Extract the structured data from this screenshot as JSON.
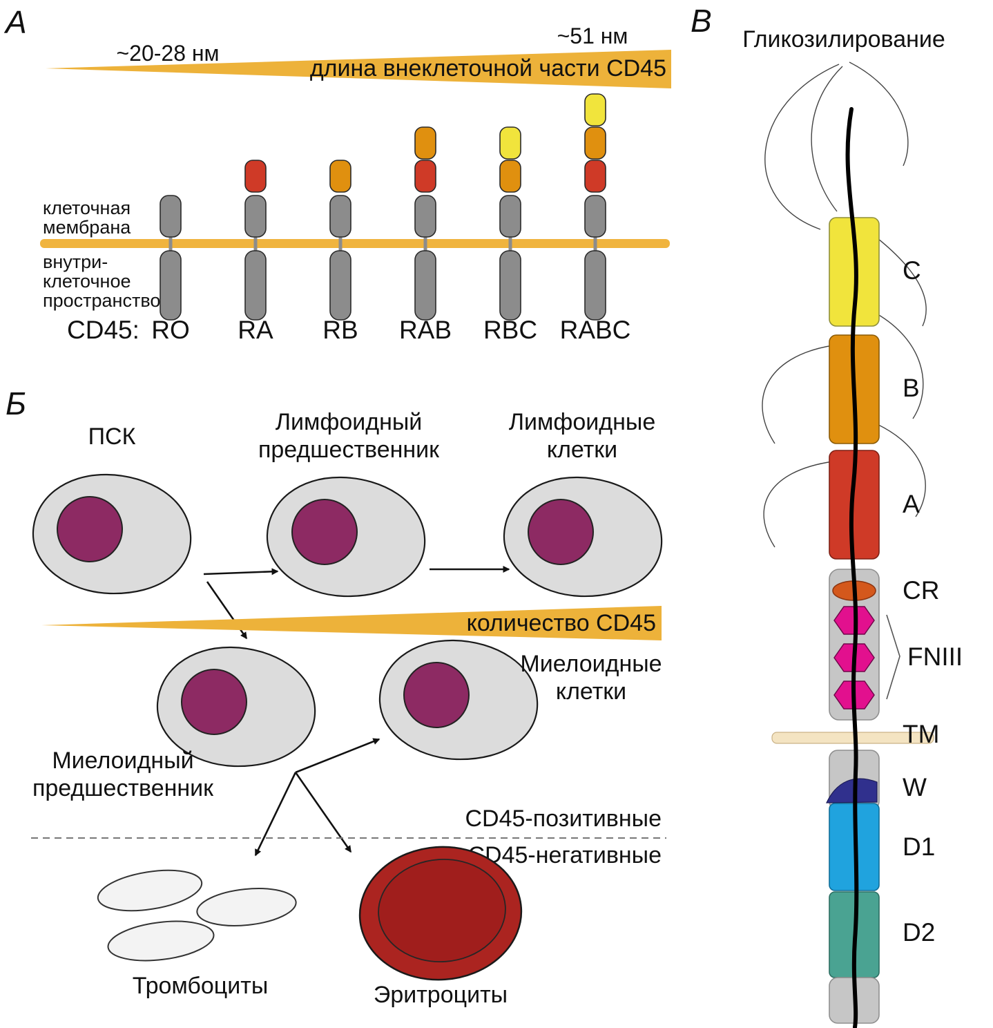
{
  "panel_a": {
    "label": "А",
    "len_left": "~20-28 нм",
    "len_right": "~51 нм",
    "gradient_title": "длина внеклеточной части CD45",
    "membrane_line1": "клеточная",
    "membrane_line2": "мембрана",
    "intra_line1": "внутри-",
    "intra_line2": "клеточное",
    "intra_line3": "пространство",
    "cd45_prefix": "CD45:",
    "isoforms": [
      {
        "name": "RO",
        "domains": []
      },
      {
        "name": "RA",
        "domains": [
          "A"
        ]
      },
      {
        "name": "RB",
        "domains": [
          "B"
        ]
      },
      {
        "name": "RAB",
        "domains": [
          "A",
          "B"
        ]
      },
      {
        "name": "RBC",
        "domains": [
          "B",
          "C"
        ]
      },
      {
        "name": "RABC",
        "domains": [
          "A",
          "B",
          "C"
        ]
      }
    ]
  },
  "panel_b": {
    "label": "Б",
    "psk": "ПСК",
    "lymphoid_precursor_l1": "Лимфоидный",
    "lymphoid_precursor_l2": "предшественник",
    "lymphoid_cells_l1": "Лимфоидные",
    "lymphoid_cells_l2": "клетки",
    "amount_label": "количество CD45",
    "myeloid_precursor_l1": "Миелоидный",
    "myeloid_precursor_l2": "предшественник",
    "myeloid_cells_l1": "Миелоидные",
    "myeloid_cells_l2": "клетки",
    "positive": "CD45-позитивные",
    "negative": "CD45-негативные",
    "platelets": "Тромбоциты",
    "erythrocytes": "Эритроциты"
  },
  "panel_v": {
    "label": "В",
    "glycosylation": "Гликозилирование",
    "labels": {
      "c": "C",
      "b": "B",
      "a": "A",
      "cr": "CR",
      "fniii": "FNIII",
      "tm": "TM",
      "w": "W",
      "d1": "D1",
      "d2": "D2"
    }
  },
  "colors": {
    "domain_a": "#cf3a27",
    "domain_b": "#e0900f",
    "domain_c": "#f1e43c",
    "gray_segment": "#8c8c8c",
    "membrane": "#f0b43e",
    "gradient": "#edb23a",
    "cell_body": "#dcdcdc",
    "nucleus": "#8d2a63",
    "erythrocyte": "#ab2420",
    "erythrocyte_inner": "#a01e1c",
    "platelet": "#f3f3f3",
    "cr": "#d4581c",
    "fniii": "#e2108e",
    "tm": "#f4e4c2",
    "w": "#30308d",
    "d1": "#20a3de",
    "d2": "#4aa392",
    "block_gray": "#c6c6c6"
  }
}
